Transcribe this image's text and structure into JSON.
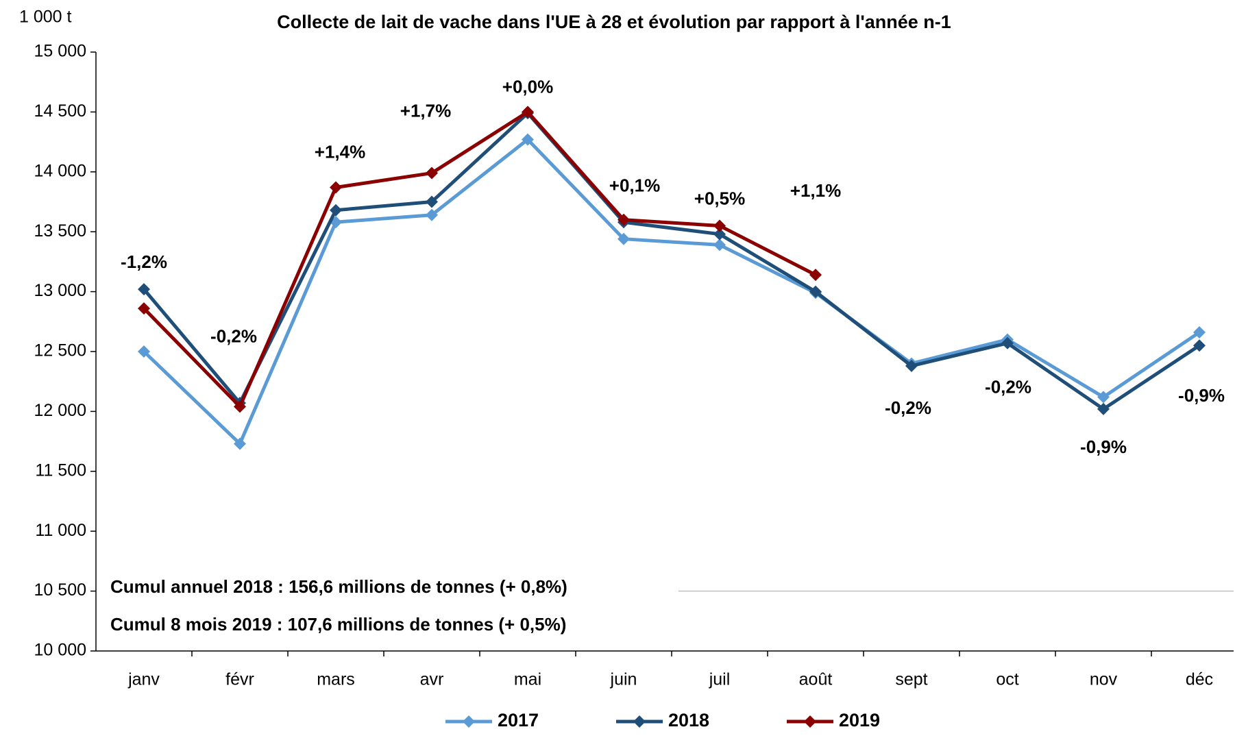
{
  "chart_data": {
    "type": "line",
    "title": "Collecte de lait de vache dans l'UE à 28 et évolution par rapport à l'année n-1",
    "y_unit": "1 000 t",
    "categories": [
      "janv",
      "févr",
      "mars",
      "avr",
      "mai",
      "juin",
      "juil",
      "août",
      "sept",
      "oct",
      "nov",
      "déc"
    ],
    "series": [
      {
        "name": "2017",
        "color": "#5b9bd5",
        "values": [
          12500,
          11730,
          13580,
          13640,
          14270,
          13440,
          13390,
          12990,
          12400,
          12600,
          12120,
          12660
        ]
      },
      {
        "name": "2018",
        "color": "#1f4e79",
        "values": [
          13020,
          12070,
          13680,
          13750,
          14490,
          13580,
          13480,
          13000,
          12380,
          12570,
          12020,
          12550
        ]
      },
      {
        "name": "2019",
        "color": "#8b0000",
        "values": [
          12860,
          12040,
          13870,
          13990,
          14500,
          13600,
          13550,
          13140,
          null,
          null,
          null,
          null
        ]
      }
    ],
    "evolution_labels": [
      "-1,2%",
      "-0,2%",
      "+1,4%",
      "+1,7%",
      "+0,0%",
      "+0,1%",
      "+0,5%",
      "+1,1%",
      "-0,2%",
      "-0,2%",
      "-0,9%",
      "-0,9%"
    ],
    "notes": [
      {
        "text": "Cumul annuel 2018 : 156,6 millions de tonnes (+ 0,8%)",
        "color": "#1f4e79"
      },
      {
        "text": "Cumul 8 mois 2019 : 107,6 millions de tonnes (+ 0,5%)",
        "color": "#8b0000"
      }
    ],
    "ylim": [
      10000,
      15000
    ],
    "yticks": [
      {
        "value": 10000,
        "label": "10 000"
      },
      {
        "value": 10500,
        "label": "10 500"
      },
      {
        "value": 11000,
        "label": "11 000"
      },
      {
        "value": 11500,
        "label": "11 500"
      },
      {
        "value": 12000,
        "label": "12 000"
      },
      {
        "value": 12500,
        "label": "12 500"
      },
      {
        "value": 13000,
        "label": "13 000"
      },
      {
        "value": 13500,
        "label": "13 500"
      },
      {
        "value": 14000,
        "label": "14 000"
      },
      {
        "value": 14500,
        "label": "14 500"
      },
      {
        "value": 15000,
        "label": "15 000"
      }
    ],
    "legend": "bottom"
  }
}
